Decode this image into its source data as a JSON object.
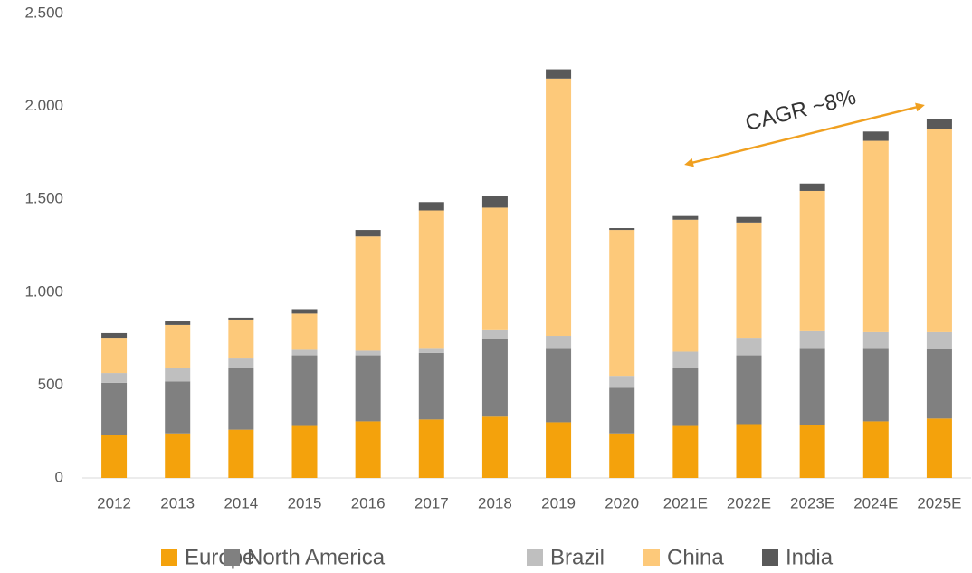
{
  "chart_data": {
    "type": "stacked_bar",
    "categories": [
      "2012",
      "2013",
      "2014",
      "2015",
      "2016",
      "2017",
      "2018",
      "2019",
      "2020",
      "2021E",
      "2022E",
      "2023E",
      "2024E",
      "2025E"
    ],
    "series": [
      {
        "name": "Europe",
        "color": "#f4a20c",
        "values": [
          230,
          240,
          260,
          280,
          305,
          315,
          330,
          300,
          240,
          280,
          290,
          285,
          305,
          320
        ]
      },
      {
        "name": "North America",
        "color": "#808080",
        "values": [
          282,
          280,
          330,
          380,
          355,
          358,
          420,
          400,
          245,
          310,
          370,
          415,
          395,
          375
        ]
      },
      {
        "name": "Brazil",
        "color": "#bfbfbf",
        "values": [
          53,
          70,
          53,
          30,
          25,
          27,
          45,
          65,
          65,
          90,
          95,
          90,
          85,
          90
        ]
      },
      {
        "name": "China",
        "color": "#fdc97a",
        "values": [
          190,
          234,
          210,
          195,
          615,
          740,
          660,
          1385,
          785,
          710,
          620,
          755,
          1030,
          1095
        ]
      },
      {
        "name": "India",
        "color": "#595959",
        "values": [
          25,
          19,
          10,
          24,
          35,
          45,
          65,
          50,
          10,
          20,
          30,
          40,
          50,
          50
        ]
      }
    ],
    "ylim": [
      0,
      2500
    ],
    "yticks": [
      0,
      500,
      {
        "value": 1000,
        "label": "1.000"
      },
      {
        "value": 1500,
        "label": "1.500"
      },
      {
        "value": 2000,
        "label": "2.000"
      },
      {
        "value": 2500,
        "label": "2.500"
      }
    ],
    "grid": false,
    "legend": "bottom",
    "annotation": "CAGR ~8%"
  }
}
